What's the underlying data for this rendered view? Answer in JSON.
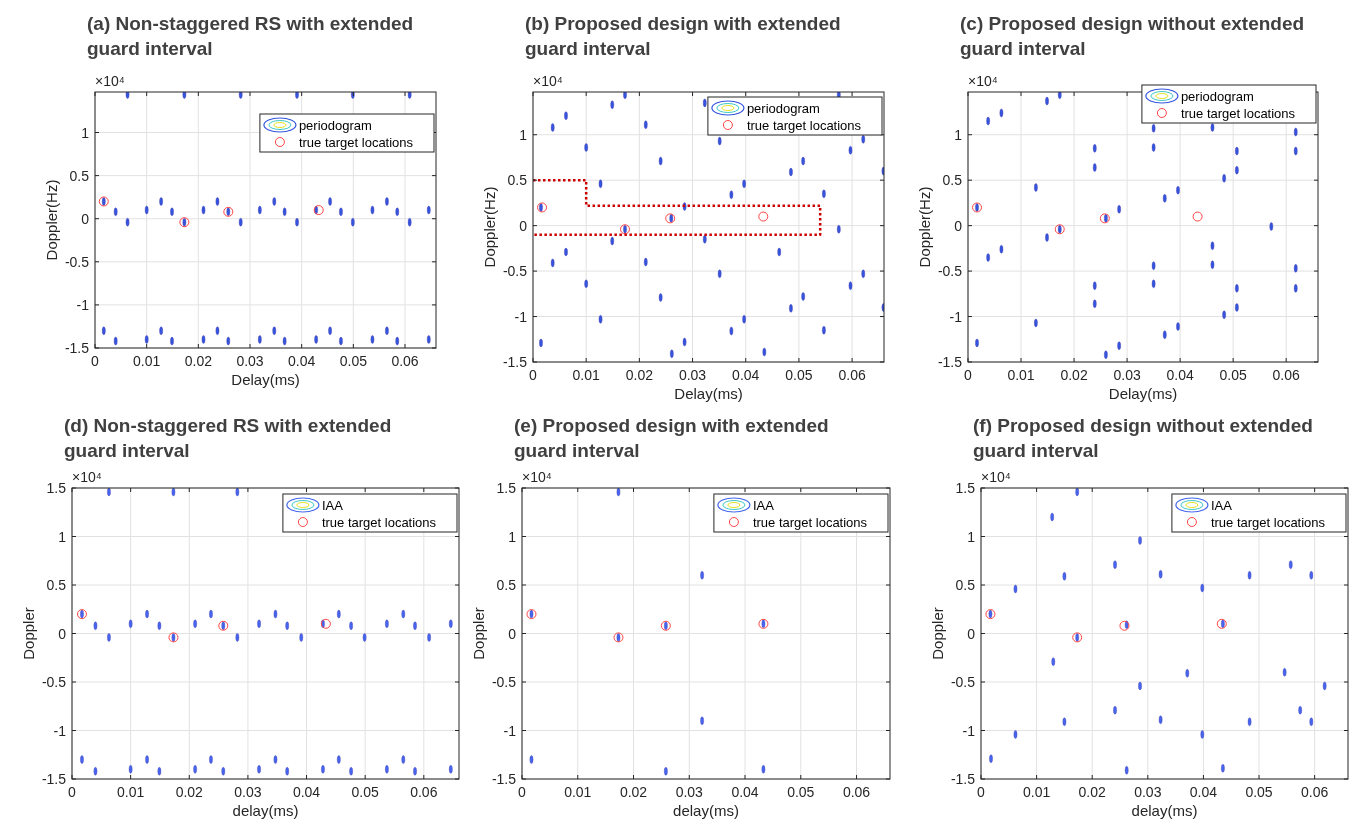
{
  "chart_data": [
    {
      "type": "scatter",
      "title": "(a) Non-staggered RS with extended guard interval",
      "xlabel": "Delay(ms)",
      "ylabel": "Doppler(Hz)",
      "annotations": [
        "×10⁴"
      ],
      "xlim": [
        0,
        0.066
      ],
      "ylim": [
        -1.5,
        1.47
      ],
      "xticks": [
        0,
        0.01,
        0.02,
        0.03,
        0.04,
        0.05,
        0.06
      ],
      "yticks": [
        -1.5,
        -1,
        -0.5,
        0,
        0.5,
        1
      ],
      "grid": true,
      "legend": "top right",
      "series": [
        {
          "name": "periodogram",
          "color": "#3355dd",
          "x": [
            0.0017,
            0.0128,
            0.0237,
            0.0347,
            0.0455,
            0.0565,
            0.004,
            0.0149,
            0.0258,
            0.0367,
            0.0476,
            0.0585,
            0.01,
            0.021,
            0.0319,
            0.0428,
            0.0537,
            0.0646,
            0.0063,
            0.0173,
            0.0282,
            0.0391,
            0.0499,
            0.0609,
            0.0017,
            0.0128,
            0.0237,
            0.0347,
            0.0455,
            0.0565,
            0.004,
            0.0149,
            0.0258,
            0.0367,
            0.0476,
            0.0585,
            0.01,
            0.021,
            0.0319,
            0.0428,
            0.0537,
            0.0646,
            0.0063,
            0.0173,
            0.0282,
            0.0391,
            0.0499,
            0.0609
          ],
          "values": [
            0.2,
            0.2,
            0.2,
            0.2,
            0.2,
            0.2,
            0.08,
            0.08,
            0.08,
            0.08,
            0.08,
            0.08,
            0.1,
            0.1,
            0.1,
            0.1,
            0.1,
            0.1,
            -0.04,
            -0.04,
            -0.04,
            -0.04,
            -0.04,
            -0.04,
            -1.3,
            -1.3,
            -1.3,
            -1.3,
            -1.3,
            -1.3,
            -1.42,
            -1.42,
            -1.42,
            -1.42,
            -1.42,
            -1.42,
            -1.4,
            -1.4,
            -1.4,
            -1.4,
            -1.4,
            -1.4,
            1.44,
            1.44,
            1.44,
            1.44,
            1.44,
            1.44
          ]
        },
        {
          "name": "true target locations",
          "color": "#ff4444",
          "marker": "circle",
          "x": [
            0.0017,
            0.0173,
            0.0258,
            0.0433
          ],
          "values": [
            0.2,
            -0.04,
            0.08,
            0.1
          ]
        }
      ]
    },
    {
      "type": "scatter",
      "title": "(b) Proposed design with extended guard interval",
      "xlabel": "Delay(ms)",
      "ylabel": "Doppler(Hz)",
      "annotations": [
        "×10⁴"
      ],
      "xlim": [
        0,
        0.066
      ],
      "ylim": [
        -1.5,
        1.47
      ],
      "xticks": [
        0,
        0.01,
        0.02,
        0.03,
        0.04,
        0.05,
        0.06
      ],
      "yticks": [
        -1.5,
        -1,
        -0.5,
        0,
        0.5,
        1
      ],
      "grid": true,
      "legend": "top right",
      "series": [
        {
          "name": "periodogram",
          "color": "#3355dd",
          "x": [
            0.0015,
            0.0173,
            0.026,
            0.0173,
            0.0149,
            0.0062,
            0.0037,
            0.0212,
            0.01,
            0.024,
            0.0127,
            0.0285,
            0.0149,
            0.0062,
            0.0037,
            0.0212,
            0.01,
            0.024,
            0.0127,
            0.0015,
            0.0285,
            0.0261,
            0.0323,
            0.0351,
            0.0323,
            0.0351,
            0.0373,
            0.0397,
            0.0463,
            0.0373,
            0.0397,
            0.0435,
            0.0485,
            0.0508,
            0.0547,
            0.0575,
            0.0597,
            0.0621,
            0.0659,
            0.0575,
            0.0621,
            0.0597,
            0.0508,
            0.0485,
            0.0547,
            0.0659
          ],
          "values": [
            0.2,
            -0.04,
            0.08,
            1.44,
            1.33,
            1.21,
            1.08,
            1.11,
            0.86,
            0.71,
            0.46,
            0.21,
            -0.17,
            -0.29,
            -0.41,
            -0.4,
            -0.64,
            -0.79,
            -1.03,
            -1.29,
            -1.28,
            -1.41,
            1.35,
            0.93,
            -0.15,
            -0.53,
            0.34,
            0.46,
            -0.29,
            -1.16,
            -1.03,
            -1.39,
            0.59,
            0.71,
            0.35,
            1.44,
            0.83,
            0.95,
            0.6,
            -0.04,
            -0.53,
            -0.66,
            -0.78,
            -0.91,
            -1.15,
            -0.9
          ]
        },
        {
          "name": "true target locations",
          "color": "#ff4444",
          "marker": "circle",
          "x": [
            0.0017,
            0.0173,
            0.0258,
            0.0433
          ],
          "values": [
            0.2,
            -0.04,
            0.08,
            0.1
          ]
        },
        {
          "type": "line",
          "color": "#cc0000",
          "line_style": "dotted",
          "x": [
            0,
            0.01,
            0.01,
            0.054,
            0.054,
            0
          ],
          "values": [
            0.5,
            0.5,
            0.22,
            0.22,
            -0.1,
            -0.1
          ]
        }
      ]
    },
    {
      "type": "scatter",
      "title": "(c) Proposed design without extended guard interval",
      "xlabel": "Delay(ms)",
      "ylabel": "Doppler(Hz)",
      "annotations": [
        "×10⁴"
      ],
      "xlim": [
        0,
        0.066
      ],
      "ylim": [
        -1.5,
        1.47
      ],
      "xticks": [
        0,
        0.01,
        0.02,
        0.03,
        0.04,
        0.05,
        0.06
      ],
      "yticks": [
        -1.5,
        -1,
        -0.5,
        0,
        0.5,
        1
      ],
      "grid": true,
      "legend": "top right",
      "series": [
        {
          "name": "periodogram",
          "color": "#3355dd",
          "x": [
            0.0017,
            0.0173,
            0.026,
            0.0173,
            0.0149,
            0.0063,
            0.0038,
            0.0128,
            0.0239,
            0.0239,
            0.0285,
            0.035,
            0.035,
            0.0396,
            0.0371,
            0.0461,
            0.0507,
            0.0507,
            0.0483,
            0.0618,
            0.0618,
            0.0572,
            0.0149,
            0.0063,
            0.0038,
            0.0128,
            0.0239,
            0.0239,
            0.026,
            0.0285,
            0.035,
            0.035,
            0.0371,
            0.0396,
            0.0461,
            0.0461,
            0.0507,
            0.0507,
            0.0483,
            0.0618,
            0.0618,
            0.0017
          ],
          "values": [
            0.2,
            -0.04,
            0.08,
            1.44,
            1.37,
            1.24,
            1.15,
            0.42,
            0.85,
            0.64,
            0.18,
            1.07,
            0.86,
            0.39,
            0.3,
            1.08,
            0.82,
            0.61,
            0.52,
            1.03,
            0.82,
            -0.01,
            -0.13,
            -0.26,
            -0.35,
            -1.07,
            -0.66,
            -0.86,
            -1.42,
            -1.32,
            -0.44,
            -0.64,
            -1.2,
            -1.11,
            -0.22,
            -0.43,
            -0.69,
            -0.9,
            -0.98,
            -0.47,
            -0.69,
            -1.29
          ]
        },
        {
          "name": "true target locations",
          "color": "#ff4444",
          "marker": "circle",
          "x": [
            0.0017,
            0.0173,
            0.0258,
            0.0433
          ],
          "values": [
            0.2,
            -0.04,
            0.08,
            0.1
          ]
        }
      ]
    },
    {
      "type": "scatter",
      "title": "(d) Non-staggered RS with extended guard interval",
      "xlabel": "delay(ms)",
      "ylabel": "Doppler",
      "annotations": [
        "×10⁴"
      ],
      "xlim": [
        0,
        0.066
      ],
      "ylim": [
        -1.5,
        1.5
      ],
      "xticks": [
        0,
        0.01,
        0.02,
        0.03,
        0.04,
        0.05,
        0.06
      ],
      "yticks": [
        -1.5,
        -1,
        -0.5,
        0,
        0.5,
        1,
        1.5
      ],
      "grid": true,
      "legend": "top right",
      "series": [
        {
          "name": "IAA",
          "color": "#4466ee",
          "x": [
            0.0017,
            0.0128,
            0.0237,
            0.0347,
            0.0455,
            0.0565,
            0.004,
            0.0149,
            0.0258,
            0.0367,
            0.0476,
            0.0585,
            0.01,
            0.021,
            0.0319,
            0.0428,
            0.0537,
            0.0646,
            0.0063,
            0.0173,
            0.0282,
            0.0391,
            0.0499,
            0.0609,
            0.0017,
            0.0128,
            0.0237,
            0.0347,
            0.0455,
            0.0565,
            0.004,
            0.0149,
            0.0258,
            0.0367,
            0.0476,
            0.0585,
            0.01,
            0.021,
            0.0319,
            0.0428,
            0.0537,
            0.0646,
            0.0063,
            0.0173,
            0.0282
          ],
          "values": [
            0.2,
            0.2,
            0.2,
            0.2,
            0.2,
            0.2,
            0.08,
            0.08,
            0.08,
            0.08,
            0.08,
            0.08,
            0.1,
            0.1,
            0.1,
            0.1,
            0.1,
            0.1,
            -0.04,
            -0.04,
            -0.04,
            -0.04,
            -0.04,
            -0.04,
            -1.3,
            -1.3,
            -1.3,
            -1.3,
            -1.3,
            -1.3,
            -1.42,
            -1.42,
            -1.42,
            -1.42,
            -1.42,
            -1.42,
            -1.4,
            -1.4,
            -1.4,
            -1.4,
            -1.4,
            -1.4,
            1.46,
            1.46,
            1.46
          ]
        },
        {
          "name": "true target locations",
          "color": "#ff4444",
          "marker": "circle",
          "x": [
            0.0017,
            0.0173,
            0.0258,
            0.0433
          ],
          "values": [
            0.2,
            -0.04,
            0.08,
            0.1
          ]
        }
      ]
    },
    {
      "type": "scatter",
      "title": "(e) Proposed design with extended guard interval",
      "xlabel": "delay(ms)",
      "ylabel": "Doppler",
      "annotations": [
        "×10⁴"
      ],
      "xlim": [
        0,
        0.066
      ],
      "ylim": [
        -1.5,
        1.5
      ],
      "xticks": [
        0,
        0.01,
        0.02,
        0.03,
        0.04,
        0.05,
        0.06
      ],
      "yticks": [
        -1.5,
        -1,
        -0.5,
        0,
        0.5,
        1,
        1.5
      ],
      "grid": true,
      "legend": "top right",
      "series": [
        {
          "name": "IAA",
          "color": "#4466ee",
          "x": [
            0.0017,
            0.0173,
            0.0258,
            0.0433,
            0.0173,
            0.0323,
            0.0323,
            0.0017,
            0.0258,
            0.0433
          ],
          "values": [
            0.2,
            -0.04,
            0.08,
            0.1,
            1.46,
            0.6,
            -0.9,
            -1.3,
            -1.42,
            -1.4
          ]
        },
        {
          "name": "true target locations",
          "color": "#ff4444",
          "marker": "circle",
          "x": [
            0.0017,
            0.0173,
            0.0258,
            0.0433
          ],
          "values": [
            0.2,
            -0.04,
            0.08,
            0.1
          ]
        }
      ]
    },
    {
      "type": "scatter",
      "title": "(f) Proposed design without extended guard interval",
      "xlabel": "delay(ms)",
      "ylabel": "Doppler",
      "annotations": [
        "×10⁴"
      ],
      "xlim": [
        0,
        0.066
      ],
      "ylim": [
        -1.5,
        1.5
      ],
      "xticks": [
        0,
        0.01,
        0.02,
        0.03,
        0.04,
        0.05,
        0.06
      ],
      "yticks": [
        -1.5,
        -1,
        -0.5,
        0,
        0.5,
        1,
        1.5
      ],
      "grid": true,
      "legend": "top right",
      "series": [
        {
          "name": "IAA",
          "color": "#4466ee",
          "x": [
            0.0017,
            0.0173,
            0.0262,
            0.0435,
            0.0062,
            0.015,
            0.0286,
            0.0241,
            0.0323,
            0.0398,
            0.0483,
            0.0557,
            0.0594,
            0.013,
            0.0371,
            0.0286,
            0.0546,
            0.0618,
            0.0241,
            0.015,
            0.0323,
            0.0483,
            0.0574,
            0.0594,
            0.0062,
            0.0398,
            0.0018,
            0.0262,
            0.0435,
            0.0173,
            0.0128
          ],
          "values": [
            0.2,
            -0.04,
            0.09,
            0.1,
            0.46,
            0.59,
            0.96,
            0.71,
            0.61,
            0.47,
            0.6,
            0.71,
            0.6,
            -0.29,
            -0.41,
            -0.54,
            -0.4,
            -0.54,
            -0.79,
            -0.91,
            -0.89,
            -0.91,
            -0.79,
            -0.91,
            -1.04,
            -1.04,
            -1.29,
            -1.41,
            -1.39,
            1.46,
            1.2
          ]
        },
        {
          "name": "true target locations",
          "color": "#ff4444",
          "marker": "circle",
          "x": [
            0.0017,
            0.0173,
            0.0258,
            0.0433
          ],
          "values": [
            0.2,
            -0.04,
            0.08,
            0.1
          ]
        }
      ]
    }
  ]
}
